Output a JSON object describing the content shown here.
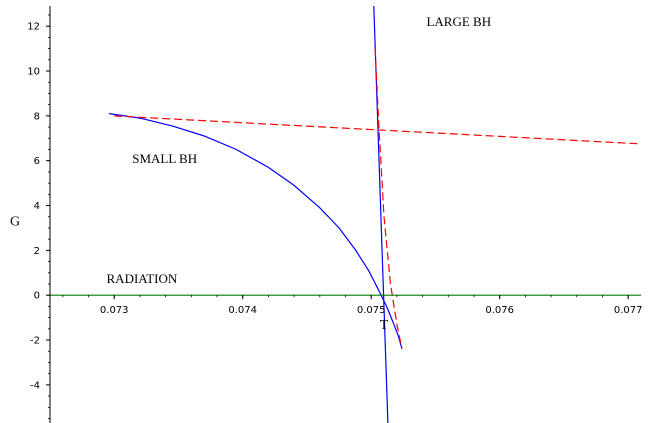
{
  "chart_data": {
    "type": "line",
    "xlabel": "T",
    "ylabel": "G",
    "xlim": [
      0.0725,
      0.0771
    ],
    "ylim": [
      -5.7,
      12.9
    ],
    "x_ticks": [
      0.073,
      0.074,
      0.075,
      0.076,
      0.077
    ],
    "x_tick_labels": [
      "0.073",
      "0.074",
      "0.075",
      "0.076",
      "0.077"
    ],
    "y_ticks": [
      -4,
      -2,
      0,
      2,
      4,
      6,
      8,
      10,
      12
    ],
    "y_tick_labels": [
      "-4",
      "-2",
      "0",
      "2",
      "4",
      "6",
      "8",
      "10",
      "12"
    ],
    "grid": false,
    "annotations": [
      {
        "text": "LARGE BH",
        "x": 0.07543,
        "y": 12.0
      },
      {
        "text": "SMALL BH",
        "x": 0.07314,
        "y": 5.9
      },
      {
        "text": "RADIATION",
        "x": 0.07294,
        "y": 0.55
      }
    ],
    "series": [
      {
        "color": "#0000ff",
        "style": "solid",
        "x": [
          0.07296,
          0.0732,
          0.07345,
          0.0737,
          0.07395,
          0.0742,
          0.0744,
          0.0746,
          0.07475,
          0.07488,
          0.07498,
          0.07506,
          0.07512,
          0.07517,
          0.07521,
          0.07524
        ],
        "y": [
          8.1,
          7.9,
          7.55,
          7.1,
          6.5,
          5.7,
          4.9,
          3.9,
          3.0,
          2.0,
          1.1,
          0.2,
          -0.5,
          -1.2,
          -1.8,
          -2.4
        ]
      },
      {
        "color": "#0000ff",
        "style": "solid",
        "x": [
          0.07502,
          0.07513
        ],
        "y": [
          12.9,
          -5.7
        ]
      },
      {
        "color": "#ff0000",
        "style": "dashed",
        "x": [
          0.073,
          0.0771
        ],
        "y": [
          8.0,
          6.75
        ]
      },
      {
        "color": "#ff0000",
        "style": "dashed",
        "x": [
          0.07503,
          0.07506,
          0.0751,
          0.07515,
          0.0752,
          0.07524
        ],
        "y": [
          11.0,
          7.5,
          3.5,
          0.5,
          -1.3,
          -2.4
        ]
      },
      {
        "color": "#008000",
        "style": "solid",
        "x": [
          0.0725,
          0.0771
        ],
        "y": [
          0,
          0
        ]
      }
    ]
  }
}
